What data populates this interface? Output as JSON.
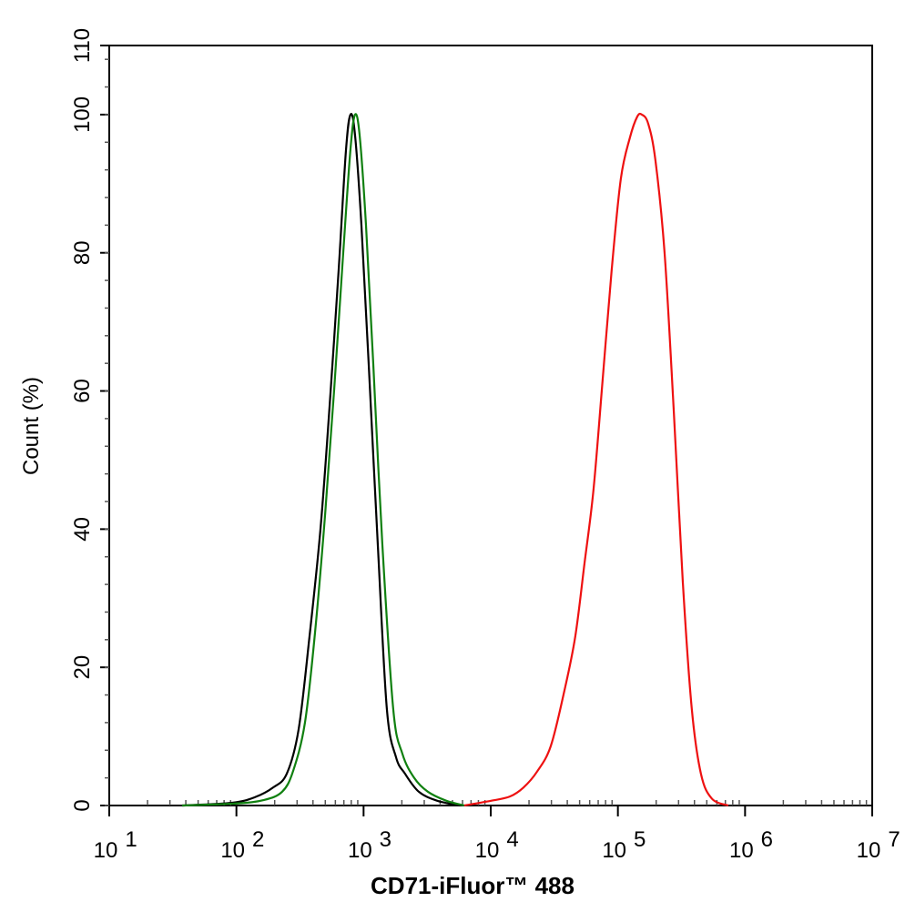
{
  "chart_data": {
    "type": "line",
    "title": "",
    "xlabel": "CD71-iFluor™ 488",
    "ylabel": "Count  (%)",
    "xscale": "log",
    "xlim_log10": [
      1,
      7
    ],
    "ylim": [
      0,
      110
    ],
    "xticks": [
      {
        "exp": 1,
        "base": "10",
        "sup": "1"
      },
      {
        "exp": 2,
        "base": "10",
        "sup": "2"
      },
      {
        "exp": 3,
        "base": "10",
        "sup": "3"
      },
      {
        "exp": 4,
        "base": "10",
        "sup": "4"
      },
      {
        "exp": 5,
        "base": "10",
        "sup": "5"
      },
      {
        "exp": 6,
        "base": "10",
        "sup": "6"
      },
      {
        "exp": 7,
        "base": "10",
        "sup": "7"
      }
    ],
    "yticks": [
      "0",
      "20",
      "40",
      "60",
      "80",
      "100",
      "110"
    ],
    "grid": false,
    "series": [
      {
        "name": "black",
        "color": "#000000",
        "log10x": [
          1.573,
          1.966,
          2.145,
          2.288,
          2.396,
          2.489,
          2.575,
          2.661,
          2.732,
          2.804,
          2.861,
          2.897,
          2.933,
          2.983,
          3.04,
          3.112,
          3.183,
          3.255,
          3.326,
          3.434,
          3.577,
          3.756
        ],
        "y": [
          0,
          0.4,
          1.2,
          2.6,
          4.6,
          11,
          24.5,
          40,
          57.6,
          77.5,
          94.7,
          100,
          97,
          84,
          64,
          37.7,
          14,
          7,
          4.6,
          2,
          0.7,
          0
        ]
      },
      {
        "name": "green",
        "color": "#108010",
        "log10x": [
          1.573,
          2.002,
          2.217,
          2.36,
          2.446,
          2.539,
          2.618,
          2.697,
          2.768,
          2.84,
          2.897,
          2.933,
          2.969,
          3.019,
          3.076,
          3.147,
          3.233,
          3.305,
          3.398,
          3.505,
          3.649,
          3.792
        ],
        "y": [
          0,
          0.3,
          0.8,
          2,
          5,
          12,
          25,
          42,
          60,
          80,
          95,
          100,
          97,
          84,
          64,
          38,
          14,
          7.5,
          4,
          2,
          0.7,
          0
        ]
      },
      {
        "name": "red",
        "color": "#ee1111",
        "log10x": [
          3.792,
          4.006,
          4.15,
          4.257,
          4.364,
          4.472,
          4.579,
          4.665,
          4.737,
          4.808,
          4.88,
          4.951,
          5.023,
          5.095,
          5.152,
          5.188,
          5.238,
          5.295,
          5.367,
          5.438,
          5.51,
          5.581,
          5.653,
          5.739,
          5.868
        ],
        "y": [
          0,
          0.7,
          1.3,
          2.6,
          4.9,
          8.6,
          16.6,
          24.5,
          35,
          45.7,
          61.6,
          77.5,
          90.7,
          96.7,
          99.7,
          100,
          98.7,
          93.4,
          80,
          57.6,
          32.5,
          14,
          4.6,
          1,
          0
        ]
      }
    ]
  }
}
